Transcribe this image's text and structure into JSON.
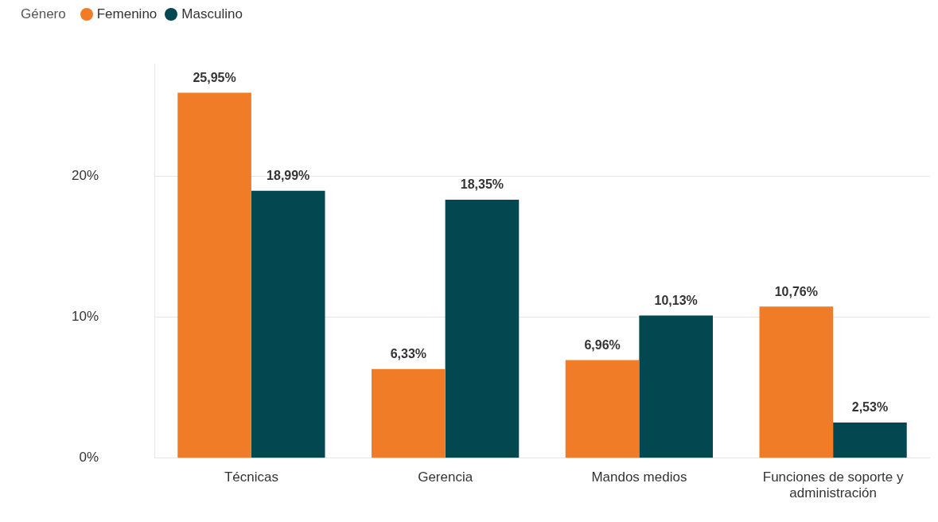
{
  "chart_data": {
    "type": "bar",
    "legend_title": "Género",
    "legend": "top left",
    "grid": "y",
    "categories": [
      "Técnicas",
      "Gerencia",
      "Mandos medios",
      "Funciones de soporte y administración"
    ],
    "series": [
      {
        "name": "Femenino",
        "color": "#f07c28",
        "values": [
          25.95,
          6.33,
          6.96,
          10.76
        ],
        "value_labels": [
          "25,95%",
          "6,33%",
          "6,96%",
          "10,76%"
        ]
      },
      {
        "name": "Masculino",
        "color": "#034750",
        "values": [
          18.99,
          18.35,
          10.13,
          2.53
        ],
        "value_labels": [
          "18,99%",
          "18,35%",
          "10,13%",
          "2,53%"
        ]
      }
    ],
    "ylim": [
      0,
      28
    ],
    "yticks": [
      {
        "value": 0,
        "label": "0%"
      },
      {
        "value": 10,
        "label": "10%"
      },
      {
        "value": 20,
        "label": "20%"
      }
    ]
  }
}
